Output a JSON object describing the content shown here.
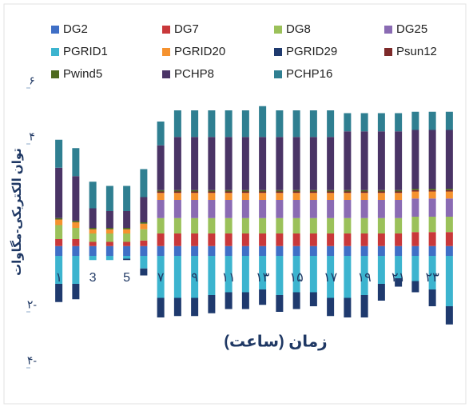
{
  "chart_data": {
    "type": "stacked_bar",
    "ylabel": "توان الکتریکی-مگاوات",
    "xlabel": "زمان (ساعت)",
    "categories": [
      "۱",
      null,
      "3",
      null,
      "5",
      null,
      "۷",
      null,
      "۹",
      null,
      "۱۱",
      null,
      "۱۳",
      null,
      "۱۵",
      null,
      "۱۷",
      null,
      "۱۹",
      null,
      "۲۱",
      null,
      "۲۳",
      null
    ],
    "ylim": [
      -4.5,
      6.3
    ],
    "yticks": [
      {
        "value": 6,
        "label": "۶"
      },
      {
        "value": 4,
        "label": "۴"
      },
      {
        "value": -2,
        "label": "۲-"
      },
      {
        "value": -4,
        "label": "۴-"
      }
    ],
    "series": [
      {
        "name": "DG2",
        "color": "#3f6fc6",
        "values": [
          0.35,
          0.35,
          0.35,
          0.35,
          0.35,
          0.35,
          0.35,
          0.35,
          0.35,
          0.35,
          0.35,
          0.35,
          0.35,
          0.35,
          0.35,
          0.35,
          0.35,
          0.35,
          0.35,
          0.35,
          0.35,
          0.35,
          0.35,
          0.35
        ]
      },
      {
        "name": "DG7",
        "color": "#c9383a",
        "values": [
          0.25,
          0.25,
          0.15,
          0.15,
          0.15,
          0.2,
          0.45,
          0.45,
          0.45,
          0.45,
          0.45,
          0.45,
          0.45,
          0.45,
          0.45,
          0.45,
          0.45,
          0.45,
          0.45,
          0.45,
          0.45,
          0.5,
          0.5,
          0.5
        ]
      },
      {
        "name": "DG8",
        "color": "#9bc15a",
        "values": [
          0.5,
          0.4,
          0.3,
          0.3,
          0.3,
          0.4,
          0.55,
          0.55,
          0.55,
          0.55,
          0.55,
          0.55,
          0.55,
          0.55,
          0.55,
          0.55,
          0.55,
          0.55,
          0.55,
          0.55,
          0.55,
          0.55,
          0.55,
          0.55
        ]
      },
      {
        "name": "DG25",
        "color": "#8a6bb3",
        "values": [
          0,
          0,
          0,
          0,
          0,
          0,
          0.65,
          0.65,
          0.65,
          0.65,
          0.65,
          0.65,
          0.65,
          0.65,
          0.65,
          0.65,
          0.65,
          0.65,
          0.65,
          0.65,
          0.65,
          0.65,
          0.65,
          0.65
        ]
      },
      {
        "name": "PGRID1",
        "color": "#3cb4cf",
        "values": [
          -1.0,
          -1.0,
          -0.15,
          -0.15,
          -0.1,
          -0.45,
          -1.5,
          -1.5,
          -1.5,
          -1.4,
          -1.3,
          -1.3,
          -1.2,
          -1.4,
          -1.3,
          -1.3,
          -1.5,
          -1.5,
          -1.4,
          -1.0,
          -0.8,
          -0.9,
          -1.2,
          -1.8
        ]
      },
      {
        "name": "PGRID20",
        "color": "#f5922f",
        "values": [
          0.2,
          0.2,
          0.15,
          0.15,
          0.15,
          0.2,
          0.25,
          0.25,
          0.25,
          0.25,
          0.25,
          0.25,
          0.25,
          0.25,
          0.25,
          0.25,
          0.25,
          0.25,
          0.25,
          0.25,
          0.25,
          0.25,
          0.25,
          0.25
        ]
      },
      {
        "name": "PGRID29",
        "color": "#1f3a6e",
        "values": [
          -0.65,
          -0.55,
          0,
          0,
          -0.05,
          -0.25,
          -0.7,
          -0.65,
          -0.65,
          -0.65,
          -0.6,
          -0.6,
          -0.55,
          -0.6,
          -0.6,
          -0.5,
          -0.65,
          -0.7,
          -0.8,
          -0.6,
          -0.3,
          -0.4,
          -0.6,
          -0.65
        ]
      },
      {
        "name": "Psun12",
        "color": "#7d2a2a",
        "values": [
          0,
          0,
          0,
          0,
          0,
          0,
          0.05,
          0.05,
          0.05,
          0.05,
          0.05,
          0.05,
          0.05,
          0.05,
          0.05,
          0.05,
          0.05,
          0.05,
          0.05,
          0.05,
          0.05,
          0.05,
          0.05,
          0.05
        ]
      },
      {
        "name": "Pwind5",
        "color": "#4e6a1f",
        "values": [
          0.05,
          0.05,
          0.05,
          0.05,
          0.05,
          0.05,
          0.05,
          0.05,
          0.05,
          0.05,
          0.05,
          0.05,
          0.05,
          0.05,
          0.05,
          0.05,
          0.05,
          0.05,
          0.05,
          0.05,
          0.05,
          0.05,
          0.05,
          0.05
        ]
      },
      {
        "name": "PCHP8",
        "color": "#4a3466",
        "values": [
          1.8,
          1.6,
          0.7,
          0.6,
          0.6,
          0.9,
          1.6,
          1.9,
          1.9,
          1.9,
          1.9,
          1.9,
          1.9,
          1.9,
          1.9,
          1.9,
          1.9,
          2.1,
          2.1,
          2.1,
          2.1,
          2.1,
          2.1,
          2.1
        ]
      },
      {
        "name": "PCHP16",
        "color": "#2f7f91",
        "values": [
          1.0,
          1.0,
          0.95,
          0.9,
          0.9,
          1.0,
          0.85,
          0.95,
          0.95,
          0.95,
          0.95,
          0.95,
          1.1,
          0.95,
          0.95,
          0.95,
          0.95,
          0.65,
          0.65,
          0.65,
          0.65,
          0.65,
          0.65,
          0.65
        ]
      }
    ]
  }
}
